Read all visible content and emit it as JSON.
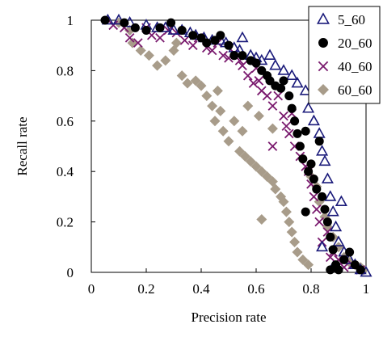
{
  "chart_data": {
    "type": "scatter",
    "title": "",
    "xlabel": "Precision rate",
    "ylabel": "Recall rate",
    "xlim": [
      0,
      1
    ],
    "ylim": [
      0,
      1
    ],
    "x_ticks": [
      "0",
      "0.2",
      "0.4",
      "0.6",
      "0.8",
      "1"
    ],
    "y_ticks": [
      "0",
      "0.2",
      "0.4",
      "0.6",
      "0.8",
      "1"
    ],
    "grid": false,
    "legend_position": "top-right",
    "series": [
      {
        "name": "5_60",
        "marker": "open-triangle",
        "color": "#1a1a7a",
        "points": [
          [
            0.06,
            1.0
          ],
          [
            0.1,
            1.0
          ],
          [
            0.14,
            0.99
          ],
          [
            0.2,
            0.98
          ],
          [
            0.24,
            0.97
          ],
          [
            0.27,
            0.97
          ],
          [
            0.3,
            0.96
          ],
          [
            0.33,
            0.96
          ],
          [
            0.36,
            0.95
          ],
          [
            0.38,
            0.94
          ],
          [
            0.41,
            0.93
          ],
          [
            0.44,
            0.92
          ],
          [
            0.47,
            0.92
          ],
          [
            0.49,
            0.91
          ],
          [
            0.52,
            0.89
          ],
          [
            0.54,
            0.88
          ],
          [
            0.55,
            0.93
          ],
          [
            0.58,
            0.86
          ],
          [
            0.6,
            0.85
          ],
          [
            0.62,
            0.84
          ],
          [
            0.65,
            0.86
          ],
          [
            0.67,
            0.82
          ],
          [
            0.7,
            0.8
          ],
          [
            0.73,
            0.78
          ],
          [
            0.75,
            0.75
          ],
          [
            0.78,
            0.72
          ],
          [
            0.79,
            0.65
          ],
          [
            0.81,
            0.6
          ],
          [
            0.83,
            0.55
          ],
          [
            0.84,
            0.48
          ],
          [
            0.85,
            0.44
          ],
          [
            0.86,
            0.37
          ],
          [
            0.87,
            0.3
          ],
          [
            0.88,
            0.24
          ],
          [
            0.89,
            0.18
          ],
          [
            0.9,
            0.12
          ],
          [
            0.92,
            0.08
          ],
          [
            0.94,
            0.05
          ],
          [
            0.96,
            0.03
          ],
          [
            0.98,
            0.01
          ],
          [
            1.0,
            0.0
          ],
          [
            0.84,
            0.1
          ],
          [
            0.88,
            0.02
          ],
          [
            0.91,
            0.28
          ]
        ]
      },
      {
        "name": "20_60",
        "marker": "filled-circle",
        "color": "#000000",
        "points": [
          [
            0.05,
            1.0
          ],
          [
            0.12,
            0.99
          ],
          [
            0.16,
            0.97
          ],
          [
            0.2,
            0.96
          ],
          [
            0.25,
            0.97
          ],
          [
            0.29,
            0.99
          ],
          [
            0.33,
            0.96
          ],
          [
            0.37,
            0.94
          ],
          [
            0.4,
            0.93
          ],
          [
            0.42,
            0.91
          ],
          [
            0.45,
            0.92
          ],
          [
            0.47,
            0.94
          ],
          [
            0.5,
            0.9
          ],
          [
            0.52,
            0.86
          ],
          [
            0.55,
            0.86
          ],
          [
            0.58,
            0.84
          ],
          [
            0.6,
            0.83
          ],
          [
            0.62,
            0.8
          ],
          [
            0.64,
            0.78
          ],
          [
            0.65,
            0.76
          ],
          [
            0.67,
            0.74
          ],
          [
            0.69,
            0.73
          ],
          [
            0.7,
            0.76
          ],
          [
            0.72,
            0.7
          ],
          [
            0.73,
            0.65
          ],
          [
            0.74,
            0.6
          ],
          [
            0.75,
            0.55
          ],
          [
            0.76,
            0.5
          ],
          [
            0.77,
            0.45
          ],
          [
            0.78,
            0.56
          ],
          [
            0.79,
            0.4
          ],
          [
            0.8,
            0.43
          ],
          [
            0.81,
            0.37
          ],
          [
            0.82,
            0.33
          ],
          [
            0.83,
            0.52
          ],
          [
            0.84,
            0.3
          ],
          [
            0.78,
            0.24
          ],
          [
            0.85,
            0.25
          ],
          [
            0.86,
            0.2
          ],
          [
            0.87,
            0.14
          ],
          [
            0.88,
            0.09
          ],
          [
            0.89,
            0.03
          ],
          [
            0.9,
            0.01
          ],
          [
            0.92,
            0.05
          ],
          [
            0.94,
            0.08
          ],
          [
            0.96,
            0.03
          ],
          [
            0.98,
            0.01
          ],
          [
            0.87,
            0.01
          ]
        ]
      },
      {
        "name": "40_60",
        "marker": "x",
        "color": "#7a1a6e",
        "points": [
          [
            0.08,
            0.98
          ],
          [
            0.12,
            0.97
          ],
          [
            0.14,
            0.93
          ],
          [
            0.17,
            0.91
          ],
          [
            0.2,
            0.97
          ],
          [
            0.22,
            0.94
          ],
          [
            0.25,
            0.93
          ],
          [
            0.28,
            0.96
          ],
          [
            0.31,
            0.95
          ],
          [
            0.34,
            0.92
          ],
          [
            0.37,
            0.9
          ],
          [
            0.39,
            0.93
          ],
          [
            0.42,
            0.89
          ],
          [
            0.44,
            0.88
          ],
          [
            0.46,
            0.91
          ],
          [
            0.48,
            0.86
          ],
          [
            0.5,
            0.85
          ],
          [
            0.52,
            0.87
          ],
          [
            0.54,
            0.84
          ],
          [
            0.55,
            0.82
          ],
          [
            0.57,
            0.78
          ],
          [
            0.59,
            0.75
          ],
          [
            0.61,
            0.76
          ],
          [
            0.62,
            0.72
          ],
          [
            0.64,
            0.7
          ],
          [
            0.66,
            0.66
          ],
          [
            0.68,
            0.7
          ],
          [
            0.7,
            0.62
          ],
          [
            0.71,
            0.58
          ],
          [
            0.72,
            0.55
          ],
          [
            0.73,
            0.63
          ],
          [
            0.74,
            0.5
          ],
          [
            0.76,
            0.46
          ],
          [
            0.78,
            0.42
          ],
          [
            0.79,
            0.4
          ],
          [
            0.8,
            0.35
          ],
          [
            0.81,
            0.3
          ],
          [
            0.82,
            0.25
          ],
          [
            0.83,
            0.2
          ],
          [
            0.84,
            0.12
          ],
          [
            0.86,
            0.16
          ],
          [
            0.87,
            0.06
          ],
          [
            0.88,
            0.08
          ],
          [
            0.9,
            0.05
          ],
          [
            0.92,
            0.02
          ],
          [
            0.95,
            0.03
          ],
          [
            0.98,
            0.01
          ],
          [
            0.66,
            0.5
          ],
          [
            0.6,
            0.81
          ]
        ]
      },
      {
        "name": "60_60",
        "marker": "filled-diamond",
        "color": "#a89c8a",
        "points": [
          [
            0.1,
            0.99
          ],
          [
            0.14,
            0.96
          ],
          [
            0.15,
            0.91
          ],
          [
            0.18,
            0.88
          ],
          [
            0.21,
            0.86
          ],
          [
            0.24,
            0.82
          ],
          [
            0.27,
            0.84
          ],
          [
            0.3,
            0.88
          ],
          [
            0.31,
            0.91
          ],
          [
            0.33,
            0.78
          ],
          [
            0.35,
            0.75
          ],
          [
            0.38,
            0.76
          ],
          [
            0.4,
            0.74
          ],
          [
            0.42,
            0.7
          ],
          [
            0.44,
            0.66
          ],
          [
            0.45,
            0.6
          ],
          [
            0.47,
            0.64
          ],
          [
            0.48,
            0.56
          ],
          [
            0.5,
            0.52
          ],
          [
            0.52,
            0.6
          ],
          [
            0.54,
            0.48
          ],
          [
            0.56,
            0.46
          ],
          [
            0.58,
            0.44
          ],
          [
            0.6,
            0.42
          ],
          [
            0.62,
            0.4
          ],
          [
            0.64,
            0.38
          ],
          [
            0.66,
            0.36
          ],
          [
            0.67,
            0.33
          ],
          [
            0.69,
            0.3
          ],
          [
            0.7,
            0.28
          ],
          [
            0.71,
            0.24
          ],
          [
            0.72,
            0.2
          ],
          [
            0.73,
            0.16
          ],
          [
            0.74,
            0.12
          ],
          [
            0.75,
            0.08
          ],
          [
            0.77,
            0.05
          ],
          [
            0.79,
            0.03
          ],
          [
            0.8,
            0.38
          ],
          [
            0.82,
            0.34
          ],
          [
            0.83,
            0.28
          ],
          [
            0.85,
            0.22
          ],
          [
            0.86,
            0.18
          ],
          [
            0.88,
            0.14
          ],
          [
            0.9,
            0.1
          ],
          [
            0.92,
            0.06
          ],
          [
            0.94,
            0.04
          ],
          [
            0.96,
            0.03
          ],
          [
            0.98,
            0.02
          ],
          [
            0.99,
            0.01
          ],
          [
            0.57,
            0.66
          ],
          [
            0.61,
            0.62
          ],
          [
            0.55,
            0.56
          ],
          [
            0.46,
            0.72
          ],
          [
            0.66,
            0.57
          ],
          [
            0.62,
            0.21
          ]
        ]
      }
    ]
  }
}
